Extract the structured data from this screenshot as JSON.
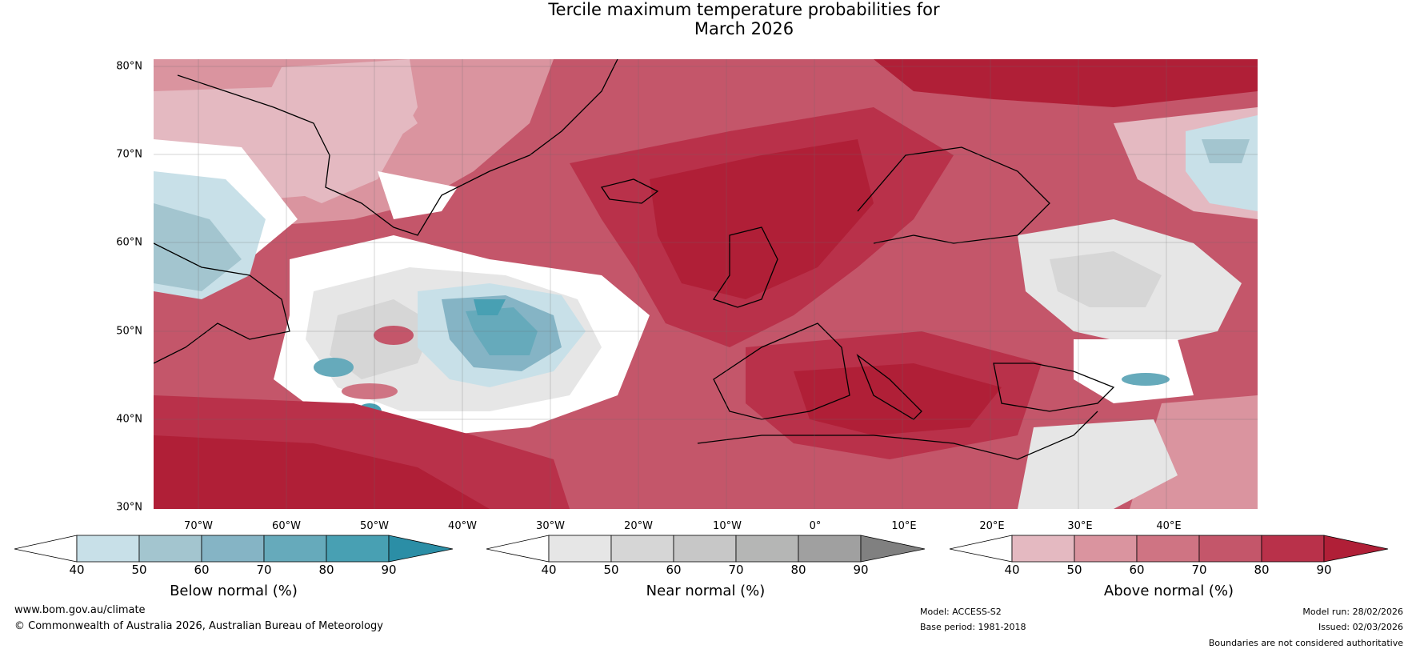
{
  "title": {
    "line1": "Tercile maximum temperature probabilities for",
    "line2": "March 2026"
  },
  "map": {
    "lat_labels": [
      "80°N",
      "70°N",
      "60°N",
      "50°N",
      "40°N",
      "30°N"
    ],
    "lon_labels": [
      "70°W",
      "60°W",
      "50°W",
      "40°W",
      "30°W",
      "20°W",
      "10°W",
      "0°",
      "10°E",
      "20°E",
      "30°E",
      "40°E"
    ],
    "extent": {
      "lon": [
        -76,
        49
      ],
      "lat": [
        30,
        81
      ]
    }
  },
  "legends": [
    {
      "name": "below",
      "title": "Below normal (%)",
      "ticks": [
        "40",
        "50",
        "60",
        "70",
        "80",
        "90"
      ],
      "colors": [
        "#ffffff",
        "#c8e0e8",
        "#a3c5cf",
        "#85b4c5",
        "#66aabb",
        "#48a0b3",
        "#2b8ea6"
      ]
    },
    {
      "name": "near",
      "title": "Near normal (%)",
      "ticks": [
        "40",
        "50",
        "60",
        "70",
        "80",
        "90"
      ],
      "colors": [
        "#ffffff",
        "#e6e6e6",
        "#d6d6d6",
        "#c7c7c7",
        "#b5b6b5",
        "#a0a0a0",
        "#808080"
      ]
    },
    {
      "name": "above",
      "title": "Above normal (%)",
      "ticks": [
        "40",
        "50",
        "60",
        "70",
        "80",
        "90"
      ],
      "colors": [
        "#ffffff",
        "#e4b9c1",
        "#da949f",
        "#cf7483",
        "#c4566a",
        "#b9314a",
        "#b01f37"
      ]
    }
  ],
  "footer": {
    "website": "www.bom.gov.au/climate",
    "copyright": "© Commonwealth of Australia 2026, Australian Bureau of Meteorology",
    "model": "Model: ACCESS-S2",
    "base_period": "Base period: 1981-2018",
    "model_run": "Model run: 28/02/2026",
    "issued": "Issued: 02/03/2026",
    "disclaimer": "Boundaries are not considered authoritative"
  }
}
